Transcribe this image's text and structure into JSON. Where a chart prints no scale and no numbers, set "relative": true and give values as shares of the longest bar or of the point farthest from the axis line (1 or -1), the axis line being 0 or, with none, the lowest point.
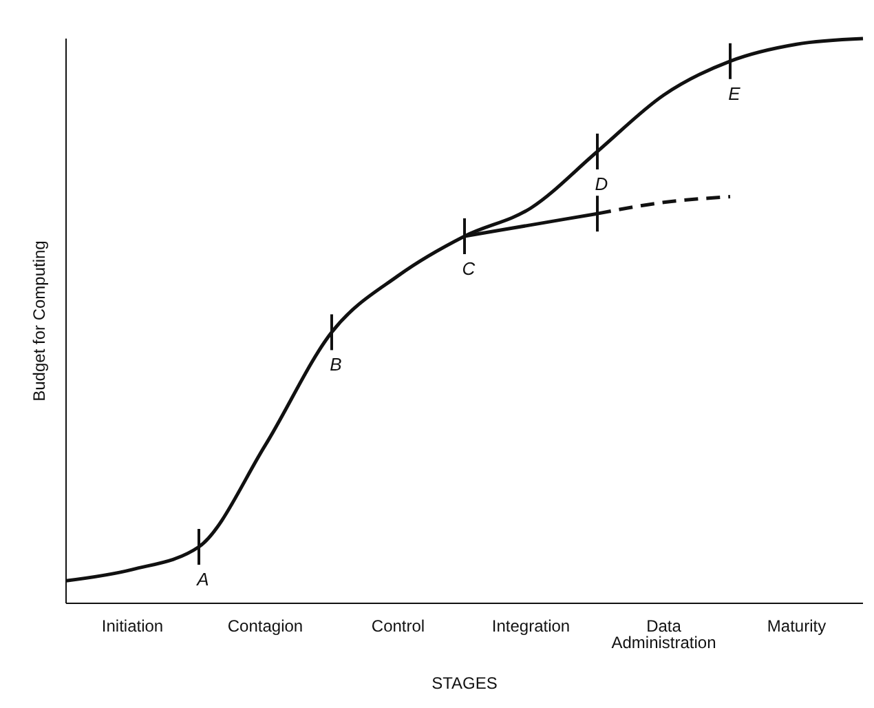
{
  "chart_data": {
    "type": "line",
    "relative": true,
    "xlabel": "STAGES",
    "ylabel": "Budget for Computing",
    "categories": [
      null,
      "Initiation",
      null,
      "Contagion",
      null,
      "Control",
      null,
      "Integration",
      null,
      "Data Administration",
      null,
      "Maturity",
      null
    ],
    "series": [
      {
        "color": "#111111",
        "line_style": "solid",
        "values": [
          0.04,
          0.06,
          0.1,
          0.28,
          0.48,
          0.58,
          0.65,
          0.7,
          0.8,
          0.9,
          0.96,
          0.99,
          1
        ]
      },
      {
        "color": "#111111",
        "line_style": "solid",
        "values": [
          null,
          null,
          null,
          null,
          null,
          null,
          0.65,
          0.67,
          0.69,
          null,
          null,
          null,
          null
        ]
      },
      {
        "color": "#111111",
        "line_style": "dashed",
        "values": [
          null,
          null,
          null,
          null,
          null,
          null,
          null,
          null,
          0.69,
          0.71,
          0.72,
          null,
          null
        ]
      }
    ],
    "annotations": [
      "A",
      "B",
      "C",
      "D",
      "E"
    ],
    "grid": false,
    "marker": "none"
  }
}
